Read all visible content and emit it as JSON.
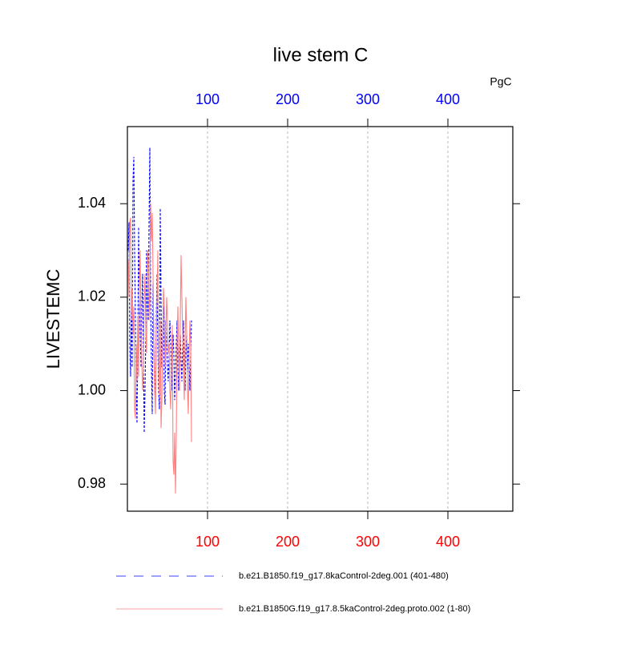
{
  "chart_data": {
    "type": "line",
    "title": "live stem C",
    "units_label": "PgC",
    "y_label": "LIVESTEMC",
    "x": [
      1,
      2,
      3,
      4,
      5,
      6,
      7,
      8,
      9,
      10,
      11,
      12,
      13,
      14,
      15,
      16,
      17,
      18,
      19,
      20,
      21,
      22,
      23,
      24,
      25,
      26,
      27,
      28,
      29,
      30,
      31,
      32,
      33,
      34,
      35,
      36,
      37,
      38,
      39,
      40,
      41,
      42,
      43,
      44,
      45,
      46,
      47,
      48,
      49,
      50,
      51,
      52,
      53,
      54,
      55,
      56,
      57,
      58,
      59,
      60,
      61,
      62,
      63,
      64,
      65,
      66,
      67,
      68,
      69,
      70,
      71,
      72,
      73,
      74,
      75,
      76,
      77,
      78,
      79,
      80
    ],
    "series": [
      {
        "name": "b.e21.B1850.f19_g17.8kaControl-2deg.001 (401-480)",
        "color": "#0000ff",
        "dashed": true,
        "values": [
          1.03,
          1.036,
          1.01,
          1.003,
          1.02,
          1.005,
          1.045,
          1.05,
          1.03,
          1.015,
          1.0,
          0.993,
          1.01,
          1.035,
          1.02,
          1.012,
          1.005,
          1.018,
          1.025,
          1.008,
          0.991,
          1.0,
          1.012,
          1.03,
          1.022,
          1.015,
          1.035,
          1.052,
          1.02,
          1.005,
          0.995,
          1.023,
          1.01,
          1.002,
          0.998,
          1.015,
          1.025,
          1.01,
          1.0,
          0.996,
          1.039,
          1.02,
          1.005,
          1.012,
          1.018,
          1.0,
          0.997,
          1.015,
          1.01,
          1.005,
          1.002,
          1.008,
          1.015,
          1.01,
          1.0,
          1.005,
          1.012,
          1.008,
          0.998,
          1.003,
          1.01,
          1.015,
          1.005,
          1.0,
          1.008,
          1.012,
          1.006,
          1.002,
          1.01,
          1.015,
          1.005,
          1.0,
          1.008,
          1.012,
          1.004,
          1.01,
          1.006,
          1.0,
          1.008,
          1.015
        ]
      },
      {
        "name": "b.e21.B1850G.f19_g17.8.5kaControl-2deg.proto.002 (1-80)",
        "color": "#ff8080",
        "dashed": false,
        "values": [
          1.028,
          1.02,
          1.036,
          1.037,
          1.015,
          1.022,
          1.012,
          1.018,
          0.996,
          0.994,
          1.01,
          1.002,
          1.016,
          1.003,
          1.022,
          1.03,
          1.012,
          1.006,
          1.0,
          1.004,
          1.02,
          1.025,
          1.012,
          1.008,
          1.03,
          1.028,
          1.015,
          1.022,
          1.04,
          1.032,
          1.038,
          1.025,
          1.01,
          1.0,
          0.995,
          1.012,
          1.02,
          1.03,
          1.005,
          0.999,
          1.015,
          0.992,
          0.998,
          1.01,
          1.022,
          1.018,
          1.005,
          1.012,
          1.02,
          1.015,
          1.008,
          1.01,
          1.0,
          0.996,
          1.005,
          1.014,
          0.985,
          0.982,
          0.991,
          0.978,
          0.99,
          1.01,
          1.018,
          1.008,
          1.0,
          1.015,
          1.029,
          1.02,
          1.012,
          1.005,
          0.998,
          1.01,
          1.02,
          1.012,
          1.0,
          0.995,
          1.008,
          1.015,
          1.01,
          0.989
        ]
      }
    ],
    "xlim": [
      0,
      481
    ],
    "xticks": [
      100,
      200,
      300,
      400
    ],
    "xtick_color": "#ff0000",
    "x2lim": [
      0,
      481
    ],
    "x2ticks": [
      100,
      200,
      300,
      400
    ],
    "x2tick_color": "#0000ff",
    "ylim": [
      0.9742,
      1.0565
    ],
    "yticks": [
      {
        "value": 0.98,
        "label": "0.98"
      },
      {
        "value": 1.0,
        "label": "1.00"
      },
      {
        "value": 1.02,
        "label": "1.02"
      },
      {
        "value": 1.04,
        "label": "1.04"
      }
    ],
    "grid": true
  }
}
